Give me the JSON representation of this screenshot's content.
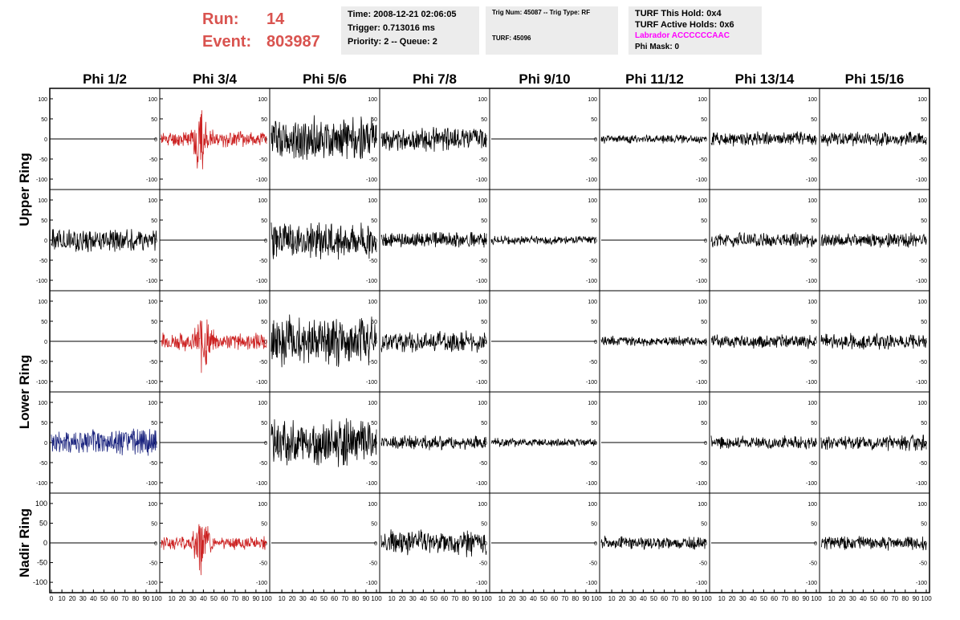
{
  "header": {
    "run_label": "Run:",
    "run_value": "14",
    "event_label": "Event:",
    "event_value": "803987",
    "time": "Time: 2008-12-21 02:06:05",
    "trigger": "Trigger: 0.713016 ms",
    "priority": "Priority: 2 -- Queue: 2",
    "trig_num": "Trig Num: 45087 -- Trig Type: RF",
    "turf": "TURF: 45096",
    "turf_hold": "TURF This Hold: 0x4",
    "turf_active": "TURF Active Holds: 0x6",
    "labrador": "Labrador ACCCCCCAAC",
    "phi_mask": "Phi Mask: 0"
  },
  "chart_data": {
    "type": "line",
    "columns": [
      "Phi 1/2",
      "Phi 3/4",
      "Phi 5/6",
      "Phi 7/8",
      "Phi 9/10",
      "Phi 11/12",
      "Phi 13/14",
      "Phi 15/16"
    ],
    "ring_labels": [
      "Upper Ring",
      "Lower Ring",
      "Nadir Ring"
    ],
    "xlim": [
      0,
      100
    ],
    "ylim": [
      -110,
      110
    ],
    "y_ticks": [
      100,
      50,
      0,
      -50,
      -100
    ],
    "x_ticks": [
      0,
      10,
      20,
      30,
      40,
      50,
      60,
      70,
      80,
      90,
      100
    ],
    "colors": {
      "default": "#000000",
      "red": "#cc2222",
      "blue": "#1a237e",
      "labrador": "#ff00ff",
      "title": "#d9534f"
    },
    "panels": [
      {
        "row": 0,
        "col": 0,
        "flat": true
      },
      {
        "row": 0,
        "col": 1,
        "color": "#cc2222",
        "amp": 22,
        "burst_center": 37,
        "burst_amp": 85,
        "seed": 11
      },
      {
        "row": 0,
        "col": 2,
        "amp": 62,
        "seed": 12
      },
      {
        "row": 0,
        "col": 3,
        "amp": 32,
        "seed": 13
      },
      {
        "row": 0,
        "col": 4,
        "flat": true
      },
      {
        "row": 0,
        "col": 5,
        "amp": 12,
        "seed": 15
      },
      {
        "row": 0,
        "col": 6,
        "amp": 20,
        "seed": 16
      },
      {
        "row": 0,
        "col": 7,
        "amp": 20,
        "seed": 17
      },
      {
        "row": 1,
        "col": 0,
        "amp": 33,
        "seed": 21
      },
      {
        "row": 1,
        "col": 1,
        "flat": true
      },
      {
        "row": 1,
        "col": 2,
        "amp": 55,
        "seed": 23
      },
      {
        "row": 1,
        "col": 3,
        "amp": 22,
        "seed": 24
      },
      {
        "row": 1,
        "col": 4,
        "amp": 12,
        "seed": 25
      },
      {
        "row": 1,
        "col": 5,
        "flat": true
      },
      {
        "row": 1,
        "col": 6,
        "amp": 20,
        "seed": 27
      },
      {
        "row": 1,
        "col": 7,
        "amp": 20,
        "seed": 28
      },
      {
        "row": 2,
        "col": 0,
        "flat": true
      },
      {
        "row": 2,
        "col": 1,
        "color": "#cc2222",
        "amp": 25,
        "burst_center": 40,
        "burst_amp": 80,
        "seed": 32
      },
      {
        "row": 2,
        "col": 2,
        "amp": 70,
        "seed": 33
      },
      {
        "row": 2,
        "col": 3,
        "amp": 30,
        "seed": 34
      },
      {
        "row": 2,
        "col": 4,
        "flat": true
      },
      {
        "row": 2,
        "col": 5,
        "amp": 14,
        "seed": 36
      },
      {
        "row": 2,
        "col": 6,
        "amp": 20,
        "seed": 37
      },
      {
        "row": 2,
        "col": 7,
        "amp": 22,
        "seed": 38
      },
      {
        "row": 3,
        "col": 0,
        "color": "#1a237e",
        "amp": 38,
        "seed": 41
      },
      {
        "row": 3,
        "col": 1,
        "flat": true
      },
      {
        "row": 3,
        "col": 2,
        "amp": 65,
        "seed": 43
      },
      {
        "row": 3,
        "col": 3,
        "amp": 20,
        "seed": 44
      },
      {
        "row": 3,
        "col": 4,
        "amp": 12,
        "seed": 45
      },
      {
        "row": 3,
        "col": 5,
        "flat": true
      },
      {
        "row": 3,
        "col": 6,
        "amp": 18,
        "seed": 47
      },
      {
        "row": 3,
        "col": 7,
        "amp": 22,
        "seed": 48
      },
      {
        "row": 4,
        "col": 0,
        "flat": true
      },
      {
        "row": 4,
        "col": 1,
        "color": "#cc2222",
        "amp": 20,
        "burst_center": 38,
        "burst_amp": 90,
        "seed": 52
      },
      {
        "row": 4,
        "col": 2,
        "flat": true
      },
      {
        "row": 4,
        "col": 3,
        "amp": 38,
        "seed": 54
      },
      {
        "row": 4,
        "col": 4,
        "flat": true
      },
      {
        "row": 4,
        "col": 5,
        "amp": 18,
        "seed": 56
      },
      {
        "row": 4,
        "col": 6,
        "flat": true
      },
      {
        "row": 4,
        "col": 7,
        "amp": 20,
        "seed": 58
      }
    ]
  }
}
